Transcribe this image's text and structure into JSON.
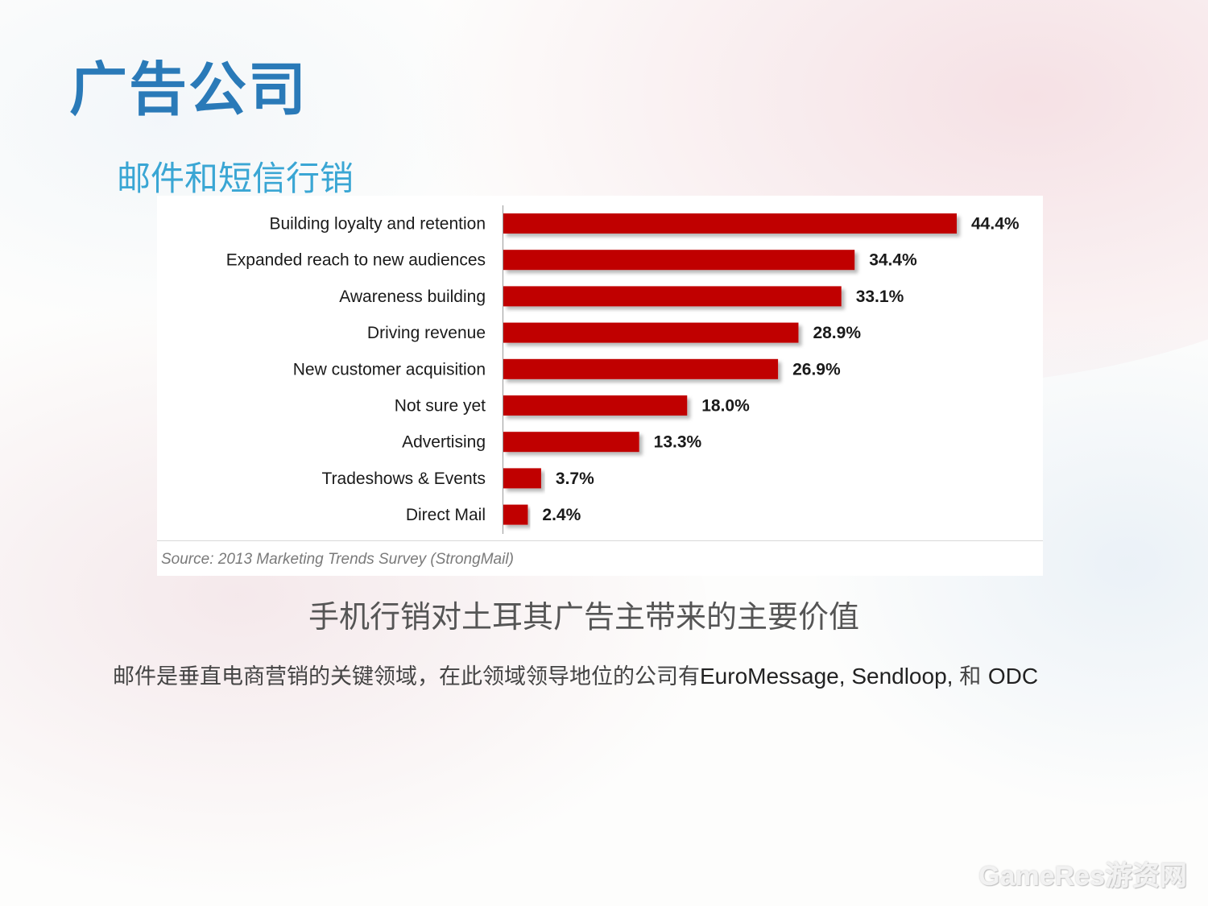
{
  "slide": {
    "title": "广告公司",
    "subtitle": "邮件和短信行销",
    "caption": "手机行销对土耳其广告主带来的主要价值",
    "body_text_cn": "邮件是垂直电商营销的关键领域，在此领域领导地位的公司有",
    "body_text_latin": "EuroMessage, Sendloop, ",
    "body_text_cn_2": "和 ",
    "body_text_latin_2": "ODC",
    "watermark": "GameRes游资网"
  },
  "chart_data": {
    "type": "bar",
    "orientation": "horizontal",
    "categories": [
      "Building loyalty and retention",
      "Expanded reach to new audiences",
      "Awareness building",
      "Driving revenue",
      "New customer acquisition",
      "Not sure yet",
      "Advertising",
      "Tradeshows & Events",
      "Direct Mail"
    ],
    "values": [
      44.4,
      34.4,
      33.1,
      28.9,
      26.9,
      18.0,
      13.3,
      3.7,
      2.4
    ],
    "value_labels": [
      "44.4%",
      "34.4%",
      "33.1%",
      "28.9%",
      "26.9%",
      "18.0%",
      "13.3%",
      "3.7%",
      "2.4%"
    ],
    "source": "Source: 2013 Marketing Trends Survey (StrongMail)",
    "xlim": [
      0,
      44.4
    ],
    "bar_color": "#c00000",
    "grid": false,
    "legend": "none"
  }
}
